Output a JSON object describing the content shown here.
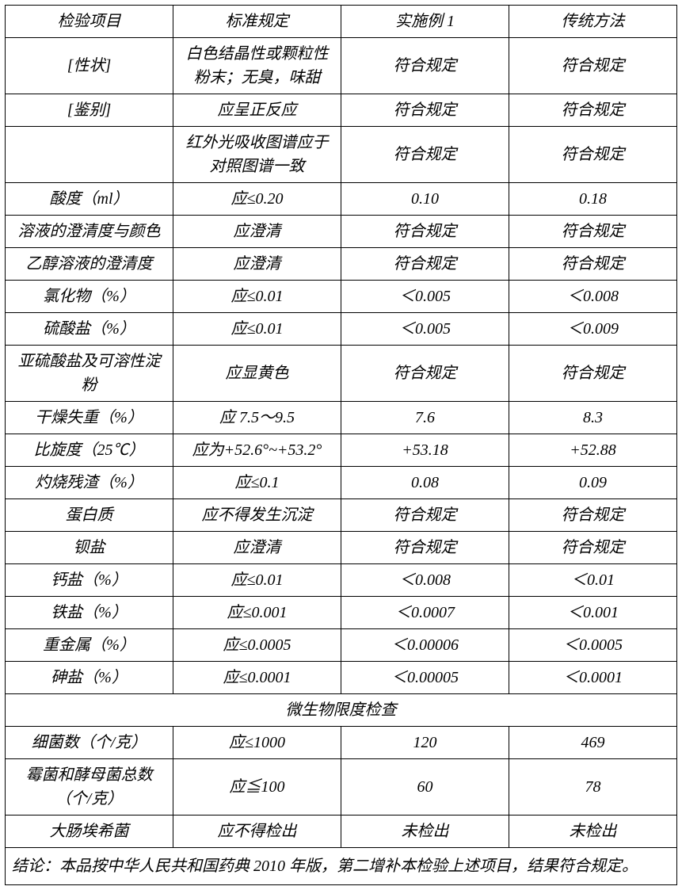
{
  "headers": {
    "col1": "检验项目",
    "col2": "标准规定",
    "col3": "实施例 1",
    "col4": "传统方法"
  },
  "rows": [
    {
      "c1": "[性状]",
      "c2": "白色结晶性或颗粒性粉末；无臭，味甜",
      "c3": "符合规定",
      "c4": "符合规定"
    },
    {
      "c1": "[鉴别]",
      "c2": "应呈正反应",
      "c3": "符合规定",
      "c4": "符合规定"
    },
    {
      "c1": "",
      "c2": "红外光吸收图谱应于对照图谱一致",
      "c3": "符合规定",
      "c4": "符合规定"
    },
    {
      "c1": "酸度（ml）",
      "c2": "应≤0.20",
      "c3": "0.10",
      "c4": "0.18"
    },
    {
      "c1": "溶液的澄清度与颜色",
      "c2": "应澄清",
      "c3": "符合规定",
      "c4": "符合规定"
    },
    {
      "c1": "乙醇溶液的澄清度",
      "c2": "应澄清",
      "c3": "符合规定",
      "c4": "符合规定"
    },
    {
      "c1": "氯化物（%）",
      "c2": "应≤0.01",
      "c3": "＜0.005",
      "c4": "＜0.008"
    },
    {
      "c1": "硫酸盐（%）",
      "c2": "应≤0.01",
      "c3": "＜0.005",
      "c4": "＜0.009"
    },
    {
      "c1": "亚硫酸盐及可溶性淀粉",
      "c2": "应显黄色",
      "c3": "符合规定",
      "c4": "符合规定"
    },
    {
      "c1": "干燥失重（%）",
      "c2": "应 7.5～9.5",
      "c3": "7.6",
      "c4": "8.3"
    },
    {
      "c1": "比旋度（25℃）",
      "c2": "应为+52.6°~+53.2°",
      "c3": "+53.18",
      "c4": "+52.88"
    },
    {
      "c1": "灼烧残渣（%）",
      "c2": "应≤0.1",
      "c3": "0.08",
      "c4": "0.09"
    },
    {
      "c1": "蛋白质",
      "c2": "应不得发生沉淀",
      "c3": "符合规定",
      "c4": "符合规定"
    },
    {
      "c1": "钡盐",
      "c2": "应澄清",
      "c3": "符合规定",
      "c4": "符合规定"
    },
    {
      "c1": "钙盐（%）",
      "c2": "应≤0.01",
      "c3": "＜0.008",
      "c4": "＜0.01"
    },
    {
      "c1": "铁盐（%）",
      "c2": "应≤0.001",
      "c3": "＜0.0007",
      "c4": "＜0.001"
    },
    {
      "c1": "重金属（%）",
      "c2": "应≤0.0005",
      "c3": "＜0.00006",
      "c4": "＜0.0005"
    },
    {
      "c1": "砷盐（%）",
      "c2": "应≤0.0001",
      "c3": "＜0.00005",
      "c4": "＜0.0001"
    }
  ],
  "microbio_header": "微生物限度检查",
  "microbio_rows": [
    {
      "c1": "细菌数（个/克）",
      "c2": "应≤1000",
      "c3": "120",
      "c4": "469"
    },
    {
      "c1": "霉菌和酵母菌总数（个/克）",
      "c2": "应≦100",
      "c3": "60",
      "c4": "78"
    },
    {
      "c1": "大肠埃希菌",
      "c2": "应不得检出",
      "c3": "未检出",
      "c4": "未检出"
    }
  ],
  "conclusion": "结论：本品按中华人民共和国药典 2010 年版，第二增补本检验上述项目，结果符合规定。"
}
